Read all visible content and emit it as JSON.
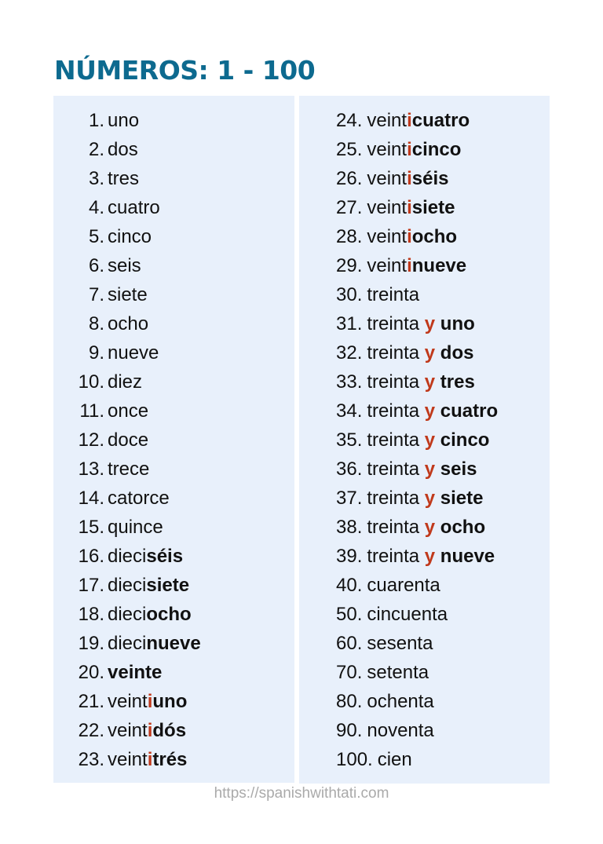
{
  "title": "NÚMEROS: 1 - 100",
  "colors": {
    "title": "#0d6a8f",
    "accent": "#c0391b",
    "panel_bg": "#e8f0fb"
  },
  "left_column": [
    {
      "num": "1.",
      "parts": [
        {
          "t": "uno",
          "s": "n"
        }
      ]
    },
    {
      "num": "2.",
      "parts": [
        {
          "t": "dos",
          "s": "n"
        }
      ]
    },
    {
      "num": "3.",
      "parts": [
        {
          "t": "tres",
          "s": "n"
        }
      ]
    },
    {
      "num": "4.",
      "parts": [
        {
          "t": "cuatro",
          "s": "n"
        }
      ]
    },
    {
      "num": "5.",
      "parts": [
        {
          "t": "cinco",
          "s": "n"
        }
      ]
    },
    {
      "num": "6.",
      "parts": [
        {
          "t": "seis",
          "s": "n"
        }
      ]
    },
    {
      "num": "7.",
      "parts": [
        {
          "t": "siete",
          "s": "n"
        }
      ]
    },
    {
      "num": "8.",
      "parts": [
        {
          "t": "ocho",
          "s": "n"
        }
      ]
    },
    {
      "num": "9.",
      "parts": [
        {
          "t": "nueve",
          "s": "n"
        }
      ]
    },
    {
      "num": "10.",
      "parts": [
        {
          "t": "diez",
          "s": "n"
        }
      ]
    },
    {
      "num": "11.",
      "parts": [
        {
          "t": "once",
          "s": "n"
        }
      ]
    },
    {
      "num": "12.",
      "parts": [
        {
          "t": "doce",
          "s": "n"
        }
      ]
    },
    {
      "num": "13.",
      "parts": [
        {
          "t": "trece",
          "s": "n"
        }
      ]
    },
    {
      "num": "14.",
      "parts": [
        {
          "t": "catorce",
          "s": "n"
        }
      ]
    },
    {
      "num": "15.",
      "parts": [
        {
          "t": "quince",
          "s": "n"
        }
      ]
    },
    {
      "num": "16.",
      "parts": [
        {
          "t": "dieci",
          "s": "n"
        },
        {
          "t": "séis",
          "s": "b"
        }
      ]
    },
    {
      "num": "17.",
      "parts": [
        {
          "t": "dieci",
          "s": "n"
        },
        {
          "t": "siete",
          "s": "b"
        }
      ]
    },
    {
      "num": "18.",
      "parts": [
        {
          "t": "dieci",
          "s": "n"
        },
        {
          "t": "ocho",
          "s": "b"
        }
      ]
    },
    {
      "num": "19.",
      "parts": [
        {
          "t": "dieci",
          "s": "n"
        },
        {
          "t": "nueve",
          "s": "b"
        }
      ]
    },
    {
      "num": "20.",
      "parts": [
        {
          "t": "veinte",
          "s": "b"
        }
      ]
    },
    {
      "num": "21.",
      "parts": [
        {
          "t": "veint",
          "s": "n"
        },
        {
          "t": "i",
          "s": "a"
        },
        {
          "t": "uno",
          "s": "b"
        }
      ]
    },
    {
      "num": "22.",
      "parts": [
        {
          "t": "veint",
          "s": "n"
        },
        {
          "t": "i",
          "s": "a"
        },
        {
          "t": "dós",
          "s": "b"
        }
      ]
    },
    {
      "num": "23.",
      "parts": [
        {
          "t": "veint",
          "s": "n"
        },
        {
          "t": "i",
          "s": "a"
        },
        {
          "t": "trés",
          "s": "b"
        }
      ]
    }
  ],
  "right_column": [
    {
      "num": "24.",
      "parts": [
        {
          "t": "veint",
          "s": "n"
        },
        {
          "t": "i",
          "s": "a"
        },
        {
          "t": "cuatro",
          "s": "b"
        }
      ]
    },
    {
      "num": "25.",
      "parts": [
        {
          "t": "veint",
          "s": "n"
        },
        {
          "t": "i",
          "s": "a"
        },
        {
          "t": "cinco",
          "s": "b"
        }
      ]
    },
    {
      "num": "26.",
      "parts": [
        {
          "t": "veint",
          "s": "n"
        },
        {
          "t": "i",
          "s": "a"
        },
        {
          "t": "séis",
          "s": "b"
        }
      ]
    },
    {
      "num": "27.",
      "parts": [
        {
          "t": "veint",
          "s": "n"
        },
        {
          "t": "i",
          "s": "a"
        },
        {
          "t": "siete",
          "s": "b"
        }
      ]
    },
    {
      "num": "28.",
      "parts": [
        {
          "t": "veint",
          "s": "n"
        },
        {
          "t": "i",
          "s": "a"
        },
        {
          "t": "ocho",
          "s": "b"
        }
      ]
    },
    {
      "num": "29.",
      "parts": [
        {
          "t": "veint",
          "s": "n"
        },
        {
          "t": "i",
          "s": "a"
        },
        {
          "t": "nueve",
          "s": "b"
        }
      ]
    },
    {
      "num": "30.",
      "parts": [
        {
          "t": "treinta",
          "s": "n"
        }
      ]
    },
    {
      "num": "31.",
      "parts": [
        {
          "t": "treinta ",
          "s": "n"
        },
        {
          "t": "y",
          "s": "a"
        },
        {
          "t": " uno",
          "s": "b"
        }
      ]
    },
    {
      "num": "32.",
      "parts": [
        {
          "t": "treinta ",
          "s": "n"
        },
        {
          "t": "y",
          "s": "a"
        },
        {
          "t": " dos",
          "s": "b"
        }
      ]
    },
    {
      "num": "33.",
      "parts": [
        {
          "t": "treinta ",
          "s": "n"
        },
        {
          "t": "y",
          "s": "a"
        },
        {
          "t": " tres",
          "s": "b"
        }
      ]
    },
    {
      "num": "34.",
      "parts": [
        {
          "t": "treinta ",
          "s": "n"
        },
        {
          "t": "y",
          "s": "a"
        },
        {
          "t": " cuatro",
          "s": "b"
        }
      ]
    },
    {
      "num": "35.",
      "parts": [
        {
          "t": "treinta ",
          "s": "n"
        },
        {
          "t": "y",
          "s": "a"
        },
        {
          "t": " cinco",
          "s": "b"
        }
      ]
    },
    {
      "num": "36.",
      "parts": [
        {
          "t": "treinta ",
          "s": "n"
        },
        {
          "t": "y",
          "s": "a"
        },
        {
          "t": " seis",
          "s": "b"
        }
      ]
    },
    {
      "num": "37.",
      "parts": [
        {
          "t": "treinta ",
          "s": "n"
        },
        {
          "t": "y",
          "s": "a"
        },
        {
          "t": " siete",
          "s": "b"
        }
      ]
    },
    {
      "num": "38.",
      "parts": [
        {
          "t": "treinta ",
          "s": "n"
        },
        {
          "t": "y",
          "s": "a"
        },
        {
          "t": " ocho",
          "s": "b"
        }
      ]
    },
    {
      "num": "39.",
      "parts": [
        {
          "t": "treinta ",
          "s": "n"
        },
        {
          "t": "y",
          "s": "a"
        },
        {
          "t": " nueve",
          "s": "b"
        }
      ]
    },
    {
      "num": "40.",
      "parts": [
        {
          "t": "cuarenta",
          "s": "n"
        }
      ]
    },
    {
      "num": "50.",
      "parts": [
        {
          "t": "cincuenta",
          "s": "n"
        }
      ]
    },
    {
      "num": "60.",
      "parts": [
        {
          "t": "sesenta",
          "s": "n"
        }
      ]
    },
    {
      "num": "70.",
      "parts": [
        {
          "t": "setenta",
          "s": "n"
        }
      ]
    },
    {
      "num": "80.",
      "parts": [
        {
          "t": "ochenta",
          "s": "n"
        }
      ]
    },
    {
      "num": "90.",
      "parts": [
        {
          "t": "noventa",
          "s": "n"
        }
      ]
    },
    {
      "num": "100.",
      "parts": [
        {
          "t": "cien",
          "s": "n"
        }
      ]
    }
  ],
  "footer": "https://spanishwithtati.com"
}
